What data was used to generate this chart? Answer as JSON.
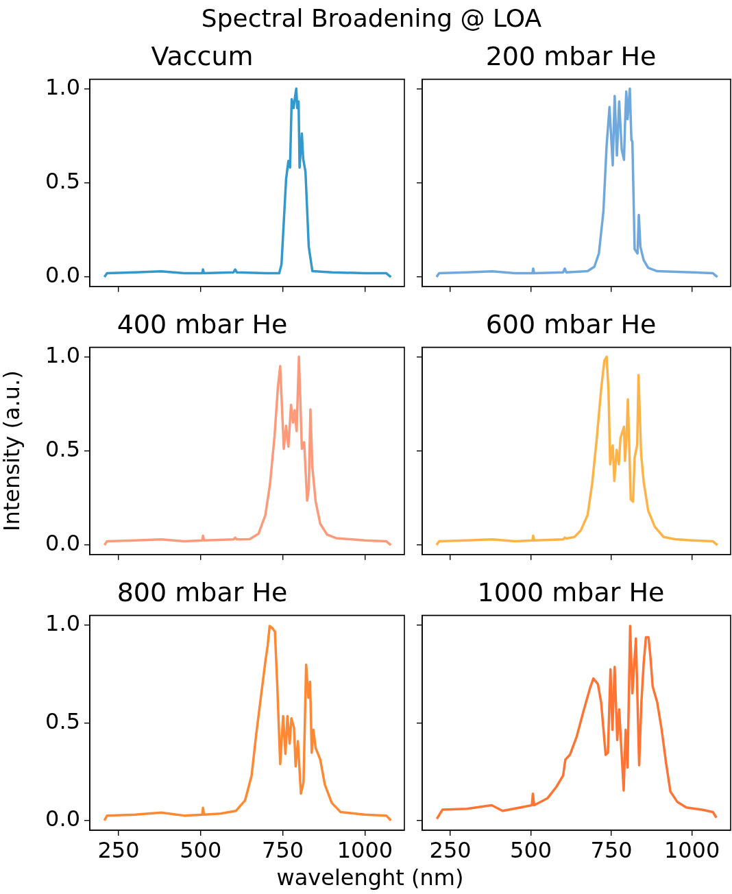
{
  "chart_data": [
    {
      "type": "line",
      "title": "Vaccum",
      "annotations": [
        "Spectral Broadening @ LOA"
      ],
      "xlim": [
        162.5,
        1120
      ],
      "ylim": [
        -0.05,
        1.05
      ],
      "xticks": [
        250,
        500,
        750,
        1000
      ],
      "yticks": [
        {
          "value": 0,
          "label": "0.0"
        },
        {
          "value": 0.5,
          "label": "0.5"
        },
        {
          "value": 1,
          "label": "1.0"
        }
      ],
      "tick_labels": "y",
      "color": "#3399cc",
      "x": [
        207,
        215,
        300,
        380,
        450,
        505,
        507,
        510,
        600,
        605,
        610,
        700,
        739,
        746,
        760,
        767,
        772,
        777,
        783,
        788,
        791,
        794,
        798,
        801,
        808,
        812,
        819,
        829,
        840,
        900,
        1000,
        1065,
        1079
      ],
      "values": [
        0.0,
        0.02,
        0.025,
        0.03,
        0.02,
        0.02,
        0.04,
        0.02,
        0.025,
        0.04,
        0.025,
        0.02,
        0.02,
        0.067,
        0.52,
        0.616,
        0.581,
        0.944,
        0.897,
        0.967,
        1.0,
        0.897,
        0.932,
        0.581,
        0.762,
        0.628,
        0.558,
        0.16,
        0.031,
        0.025,
        0.02,
        0.02,
        0.0
      ]
    },
    {
      "type": "line",
      "title": "200 mbar He",
      "xlim": [
        162.5,
        1120
      ],
      "ylim": [
        -0.05,
        1.05
      ],
      "xticks": [
        250,
        500,
        750,
        1000
      ],
      "yticks": [
        {
          "value": 0,
          "label": null
        },
        {
          "value": 0.5,
          "label": null
        },
        {
          "value": 1,
          "label": null
        }
      ],
      "tick_labels": false,
      "color": "#6fa8dc",
      "x": [
        207,
        215,
        300,
        380,
        450,
        505,
        507,
        510,
        600,
        605,
        610,
        676,
        697,
        711,
        725,
        735,
        744,
        754,
        760,
        767,
        774,
        782,
        789,
        792,
        796,
        800,
        807,
        812,
        815,
        822,
        831,
        835,
        840,
        850,
        864,
        892,
        1000,
        1065,
        1079
      ],
      "values": [
        0.0,
        0.02,
        0.025,
        0.03,
        0.02,
        0.02,
        0.045,
        0.02,
        0.025,
        0.045,
        0.025,
        0.031,
        0.055,
        0.125,
        0.347,
        0.698,
        0.903,
        0.593,
        0.961,
        0.645,
        0.932,
        0.675,
        0.622,
        0.803,
        0.985,
        0.838,
        1.0,
        0.727,
        0.72,
        0.148,
        0.125,
        0.33,
        0.16,
        0.09,
        0.049,
        0.031,
        0.025,
        0.02,
        0.0
      ]
    },
    {
      "type": "line",
      "title": "400 mbar He",
      "ylabel": "Intensity (a.u.)",
      "xlim": [
        162.5,
        1120
      ],
      "ylim": [
        -0.05,
        1.05
      ],
      "xticks": [
        250,
        500,
        750,
        1000
      ],
      "yticks": [
        {
          "value": 0,
          "label": "0.0"
        },
        {
          "value": 0.5,
          "label": "0.5"
        },
        {
          "value": 1,
          "label": "1.0"
        }
      ],
      "tick_labels": "y",
      "color": "#fc9a7a",
      "x": [
        207,
        215,
        300,
        380,
        450,
        505,
        507,
        510,
        600,
        605,
        610,
        649,
        676,
        697,
        711,
        725,
        735,
        742,
        753,
        760,
        767,
        775,
        781,
        786,
        792,
        799,
        808,
        815,
        824,
        829,
        834,
        840,
        850,
        864,
        885,
        912,
        1000,
        1065,
        1079
      ],
      "values": [
        0.0,
        0.02,
        0.025,
        0.03,
        0.02,
        0.025,
        0.05,
        0.025,
        0.03,
        0.04,
        0.03,
        0.031,
        0.06,
        0.16,
        0.324,
        0.581,
        0.838,
        0.95,
        0.511,
        0.634,
        0.523,
        0.745,
        0.651,
        0.716,
        0.605,
        1.0,
        0.511,
        0.546,
        0.236,
        0.3,
        0.72,
        0.412,
        0.23,
        0.113,
        0.055,
        0.037,
        0.025,
        0.02,
        0.0
      ]
    },
    {
      "type": "line",
      "title": "600 mbar He",
      "xlim": [
        162.5,
        1120
      ],
      "ylim": [
        -0.05,
        1.05
      ],
      "xticks": [
        250,
        500,
        750,
        1000
      ],
      "yticks": [
        {
          "value": 0,
          "label": null
        },
        {
          "value": 0.5,
          "label": null
        },
        {
          "value": 1,
          "label": null
        }
      ],
      "tick_labels": false,
      "color": "#ffb347",
      "x": [
        207,
        215,
        300,
        380,
        450,
        505,
        507,
        510,
        600,
        605,
        610,
        635,
        655,
        676,
        690,
        704,
        718,
        728,
        735,
        741,
        746,
        754,
        759,
        766,
        773,
        778,
        789,
        792,
        797,
        801,
        810,
        817,
        822,
        830,
        834,
        842,
        850,
        864,
        885,
        912,
        947,
        1000,
        1065,
        1079
      ],
      "values": [
        0.0,
        0.02,
        0.025,
        0.03,
        0.02,
        0.025,
        0.05,
        0.025,
        0.03,
        0.04,
        0.035,
        0.043,
        0.078,
        0.16,
        0.324,
        0.558,
        0.827,
        0.979,
        1.0,
        0.815,
        0.429,
        0.529,
        0.341,
        0.505,
        0.429,
        0.569,
        0.628,
        0.447,
        0.581,
        0.774,
        0.242,
        0.23,
        0.464,
        0.534,
        0.903,
        0.487,
        0.336,
        0.183,
        0.096,
        0.043,
        0.031,
        0.025,
        0.02,
        0.0
      ]
    },
    {
      "type": "line",
      "title": "800 mbar He",
      "xlabel": "wavelenght (nm)",
      "xlim": [
        162.5,
        1120
      ],
      "ylim": [
        -0.05,
        1.05
      ],
      "xticks": [
        250,
        500,
        750,
        1000
      ],
      "yticks": [
        {
          "value": 0,
          "label": "0.0"
        },
        {
          "value": 0.5,
          "label": "0.5"
        },
        {
          "value": 1,
          "label": "1.0"
        }
      ],
      "color": "#ff8833",
      "x": [
        207,
        215,
        300,
        380,
        450,
        505,
        507,
        510,
        560,
        607,
        635,
        655,
        669,
        683,
        697,
        704,
        710,
        718,
        726,
        733,
        742,
        751,
        758,
        764,
        771,
        776,
        784,
        789,
        796,
        805,
        813,
        821,
        828,
        833,
        838,
        843,
        850,
        864,
        878,
        899,
        926,
        961,
        1000,
        1065,
        1079
      ],
      "values": [
        0.0,
        0.025,
        0.03,
        0.04,
        0.025,
        0.03,
        0.065,
        0.03,
        0.035,
        0.049,
        0.102,
        0.23,
        0.441,
        0.628,
        0.815,
        0.897,
        0.996,
        0.985,
        0.967,
        0.698,
        0.289,
        0.534,
        0.341,
        0.534,
        0.394,
        0.523,
        0.476,
        0.277,
        0.406,
        0.137,
        0.195,
        0.798,
        0.628,
        0.71,
        0.347,
        0.464,
        0.371,
        0.312,
        0.183,
        0.09,
        0.043,
        0.037,
        0.03,
        0.025,
        0.0
      ]
    },
    {
      "type": "line",
      "title": "1000 mbar He",
      "xlim": [
        162.5,
        1120
      ],
      "ylim": [
        -0.05,
        1.05
      ],
      "xticks": [
        250,
        500,
        750,
        1000
      ],
      "yticks": [
        {
          "value": 0,
          "label": null
        },
        {
          "value": 0.5,
          "label": null
        },
        {
          "value": 1,
          "label": null
        }
      ],
      "tick_labels": "x",
      "color": "#ff7433",
      "x": [
        208,
        225,
        301,
        378,
        412,
        503,
        506,
        510,
        551,
        579,
        600,
        607,
        621,
        642,
        663,
        683,
        694,
        708,
        718,
        732,
        739,
        747,
        753,
        760,
        768,
        774,
        781,
        788,
        794,
        800,
        808,
        815,
        826,
        836,
        843,
        850,
        857,
        865,
        871,
        878,
        892,
        906,
        919,
        933,
        954,
        982,
        1031,
        1065,
        1076
      ],
      "values": [
        0.008,
        0.055,
        0.06,
        0.078,
        0.049,
        0.078,
        0.137,
        0.078,
        0.113,
        0.172,
        0.23,
        0.312,
        0.336,
        0.429,
        0.558,
        0.675,
        0.727,
        0.698,
        0.605,
        0.336,
        0.347,
        0.774,
        0.464,
        0.786,
        0.412,
        0.569,
        0.359,
        0.154,
        0.464,
        0.271,
        0.996,
        0.651,
        0.932,
        0.283,
        0.605,
        0.803,
        0.938,
        0.938,
        0.838,
        0.686,
        0.605,
        0.464,
        0.3,
        0.148,
        0.096,
        0.067,
        0.055,
        0.043,
        0.014
      ]
    }
  ]
}
